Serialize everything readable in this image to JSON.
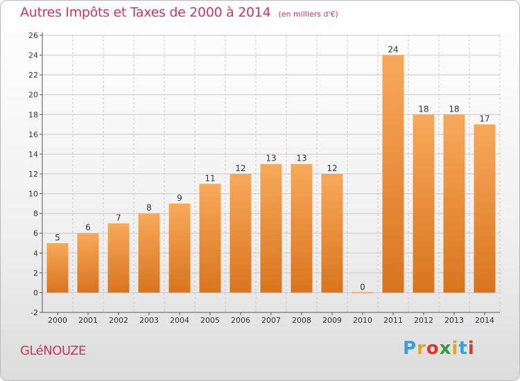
{
  "header": {
    "title": "Autres Impôts et Taxes de 2000 à 2014",
    "subtitle": "(en milliers d'€)"
  },
  "footer": {
    "commune": "GLéNOUZE",
    "logo_text": "Proxiti",
    "logo_colors": [
      "#3aa0d8",
      "#e8a21c",
      "#d8382c",
      "#3a9a3a",
      "#e8a21c",
      "#3aa0d8",
      "#d8382c"
    ]
  },
  "chart_data": {
    "type": "bar",
    "title": "Autres Impôts et Taxes de 2000 à 2014",
    "subtitle": "(en milliers d'€)",
    "xlabel": "",
    "ylabel": "",
    "categories": [
      "2000",
      "2001",
      "2002",
      "2003",
      "2004",
      "2005",
      "2006",
      "2007",
      "2008",
      "2009",
      "2010",
      "2011",
      "2012",
      "2013",
      "2014"
    ],
    "values": [
      5,
      6,
      7,
      8,
      9,
      11,
      12,
      13,
      13,
      12,
      0,
      24,
      18,
      18,
      17
    ],
    "ylim": [
      -2,
      26
    ],
    "yticks": [
      -2,
      0,
      2,
      4,
      6,
      8,
      10,
      12,
      14,
      16,
      18,
      20,
      22,
      24,
      26
    ],
    "grid": true,
    "bar_color_light": "#f7a95a",
    "bar_color_dark": "#d9741e",
    "grid_color": "#c8c8c8"
  }
}
